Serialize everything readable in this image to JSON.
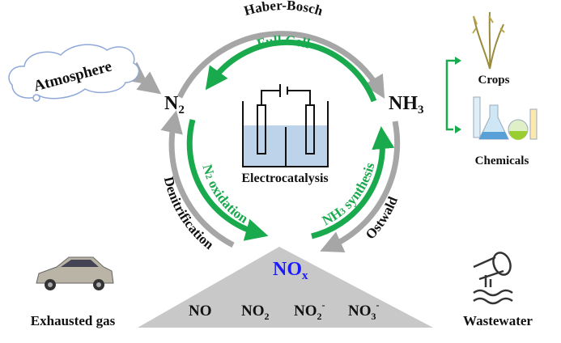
{
  "colors": {
    "gray_arrow": "#a6a6a6",
    "green_arrow": "#1aaa4e",
    "nox_blue": "#1a1aff",
    "electrolyte": "#bcd3ea",
    "cloud_stroke": "#8fa8d8",
    "triangle": "#c8c8c8"
  },
  "labels": {
    "haber_bosch": "Haber-Bosch",
    "full_cell": "Full Cell",
    "atmosphere": "Atmosphere",
    "n2": "N",
    "n2_sub": "2",
    "nh3": "NH",
    "nh3_sub": "3",
    "electrocatalysis": "Electrocatalysis",
    "n2_oxidation_pre": "N",
    "n2_oxidation_sub": "2",
    "n2_oxidation_post": " oxidation",
    "nh3_synthesis_pre": "NH",
    "nh3_synthesis_sub": "3",
    "nh3_synthesis_post": " synthesis",
    "denitrification": "Denitrification",
    "ostwald": "Ostwald",
    "crops": "Crops",
    "chemicals": "Chemicals",
    "nox": "NO",
    "nox_sub": "x",
    "exhausted_gas": "Exhausted gas",
    "wastewater": "Wastewater",
    "species": [
      {
        "base": "NO",
        "sub": "",
        "sup": ""
      },
      {
        "base": "NO",
        "sub": "2",
        "sup": ""
      },
      {
        "base": "NO",
        "sub": "2",
        "sup": "-"
      },
      {
        "base": "NO",
        "sub": "3",
        "sup": "-"
      }
    ]
  },
  "icons": [
    "cloud-icon",
    "car-icon",
    "wastewater-pipe-icon",
    "rice-crop-icon",
    "chemical-flasks-icon",
    "electrochemical-cell-icon"
  ]
}
